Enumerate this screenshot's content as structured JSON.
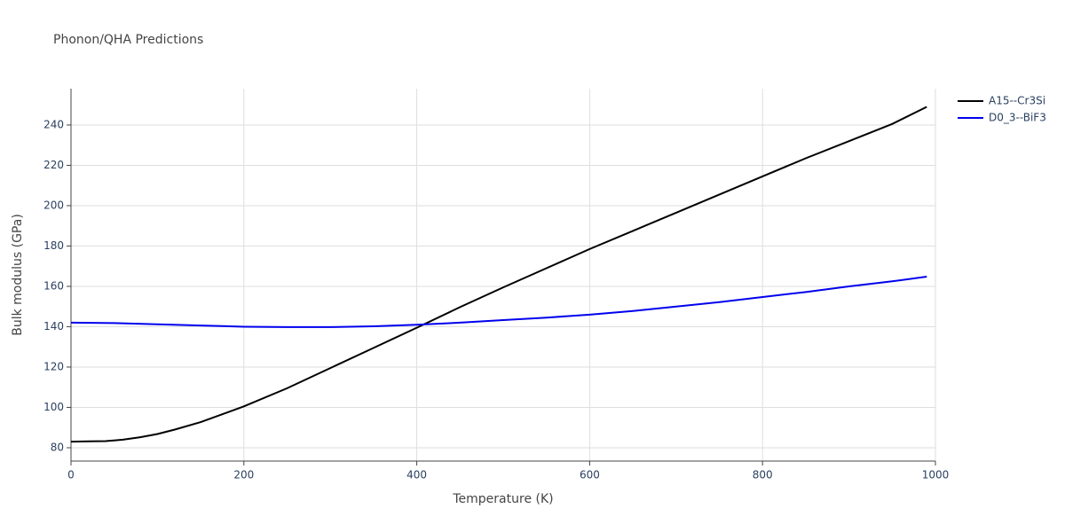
{
  "chart_data": {
    "type": "line",
    "title": "Phonon/QHA Predictions",
    "x_label": "Temperature (K)",
    "y_label": "Bulk modulus (GPa)",
    "xlim": [
      0,
      1000
    ],
    "xticks": [
      0,
      200,
      400,
      600,
      800,
      1000
    ],
    "ylim": [
      73.4,
      258
    ],
    "yticks": [
      80,
      100,
      120,
      140,
      160,
      180,
      200,
      220,
      240
    ],
    "grid": true,
    "legend": "top-right",
    "series": [
      {
        "name": "A15--Cr3Si",
        "color": "#000000",
        "x": [
          0,
          20,
          40,
          60,
          80,
          100,
          120,
          150,
          200,
          250,
          300,
          350,
          400,
          450,
          500,
          550,
          600,
          650,
          700,
          750,
          800,
          850,
          900,
          950,
          990
        ],
        "values": [
          83,
          83.2,
          83.3,
          84,
          85.2,
          86.8,
          89,
          92.7,
          100.5,
          109.5,
          119.5,
          129.5,
          139.5,
          149.7,
          159.5,
          169,
          178.5,
          187.5,
          196.5,
          205.5,
          214.5,
          223.5,
          232,
          240.5,
          249
        ]
      },
      {
        "name": "D0_3--BiF3",
        "color": "#0000ee",
        "x": [
          0,
          50,
          100,
          150,
          200,
          250,
          300,
          350,
          400,
          450,
          500,
          550,
          600,
          650,
          700,
          750,
          800,
          850,
          900,
          950,
          990
        ],
        "values": [
          142,
          141.8,
          141.2,
          140.6,
          140,
          139.8,
          139.8,
          140.2,
          141,
          142,
          143.3,
          144.5,
          146,
          147.8,
          150,
          152.2,
          154.7,
          157.2,
          160,
          162.5,
          164.8
        ]
      }
    ]
  }
}
